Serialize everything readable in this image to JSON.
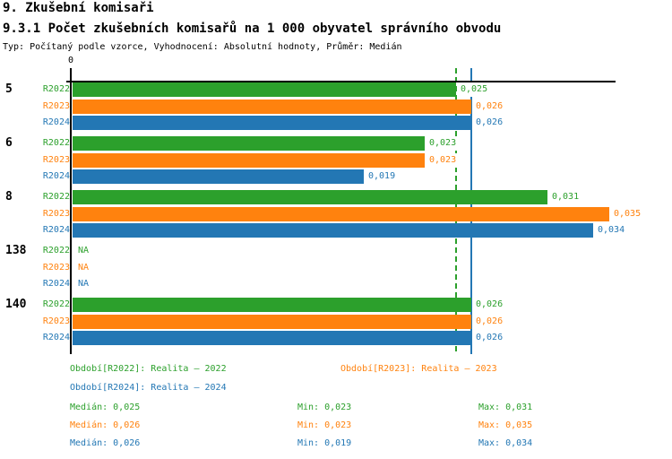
{
  "header": {
    "title": "9. Zkušební komisaři",
    "subtitle": "9.3.1 Počet zkušebních komisařů na 1 000 obyvatel správního obvodu",
    "meta": "Typ: Počítaný podle vzorce, Vyhodnocení: Absolutní hodnoty, Průměr: Medián"
  },
  "chart_data": {
    "type": "bar",
    "orientation": "horizontal",
    "title": "9.3.1 Počet zkušebních komisařů na 1 000 obyvatel správního obvodu",
    "axis_zero_label": "0",
    "xlim": [
      0,
      0.0355
    ],
    "grid": false,
    "legend_position": "bottom",
    "categories": [
      "5",
      "6",
      "8",
      "138",
      "140"
    ],
    "series": [
      {
        "name": "R2022",
        "legend_label": "Realita – 2022",
        "color": "#2ca02c",
        "values": [
          0.025,
          0.023,
          0.031,
          null,
          0.026
        ],
        "value_labels": [
          "0,025",
          "0,023",
          "0,031",
          "NA",
          "0,026"
        ],
        "median": 0.025,
        "min": 0.023,
        "max": 0.031
      },
      {
        "name": "R2023",
        "legend_label": "Realita – 2023",
        "color": "#ff820e",
        "values": [
          0.026,
          0.023,
          0.035,
          null,
          0.026
        ],
        "value_labels": [
          "0,026",
          "0,023",
          "0,035",
          "NA",
          "0,026"
        ],
        "median": 0.026,
        "min": 0.023,
        "max": 0.035
      },
      {
        "name": "R2024",
        "legend_label": "Realita – 2024",
        "color": "#2377b4",
        "values": [
          0.026,
          0.019,
          0.034,
          null,
          0.026
        ],
        "value_labels": [
          "0,026",
          "0,019",
          "0,034",
          "NA",
          "0,026"
        ],
        "median": 0.026,
        "min": 0.019,
        "max": 0.034
      }
    ],
    "median_lines": [
      {
        "series": "R2022",
        "value": 0.025,
        "color": "#2ca02c",
        "style": "dashed"
      },
      {
        "series": "R2024",
        "value": 0.026,
        "color": "#2377b4",
        "style": "solid"
      }
    ]
  },
  "legend": {
    "items": [
      {
        "label": "Období[R2022]: Realita – 2022",
        "color": "#2ca02c"
      },
      {
        "label": "Období[R2023]: Realita – 2023",
        "color": "#ff820e"
      },
      {
        "label": "Období[R2024]: Realita – 2024",
        "color": "#2377b4"
      }
    ]
  },
  "stats": {
    "rows": [
      {
        "color": "#2ca02c",
        "median": "Medián: 0,025",
        "min": "Min: 0,023",
        "max": "Max: 0,031"
      },
      {
        "color": "#ff820e",
        "median": "Medián: 0,026",
        "min": "Min: 0,023",
        "max": "Max: 0,035"
      },
      {
        "color": "#2377b4",
        "median": "Medián: 0,026",
        "min": "Min: 0,019",
        "max": "Max: 0,034"
      }
    ]
  }
}
